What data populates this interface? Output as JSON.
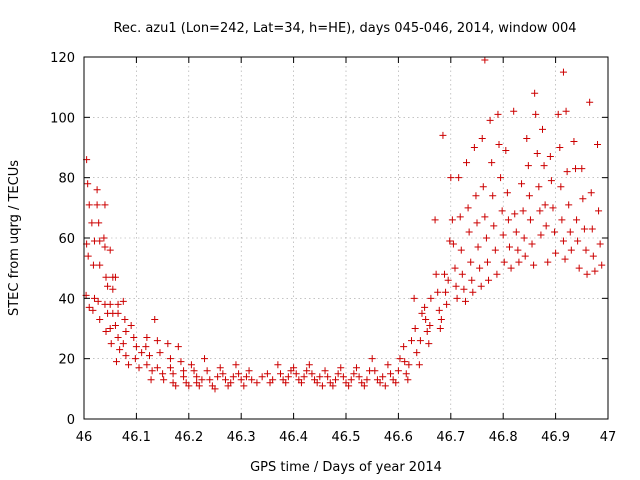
{
  "chart_data": {
    "type": "scatter",
    "title": "Rec. azu1 (Lon=242, Lat=34, h=HE), days 045-046, 2014, window 004",
    "xlabel": "GPS time / Days of year 2014",
    "ylabel": "STEC from uqrg / TECUs",
    "xlim": [
      46,
      47
    ],
    "ylim": [
      0,
      120
    ],
    "xticks": [
      "46",
      "46.1",
      "46.2",
      "46.3",
      "46.4",
      "46.5",
      "46.6",
      "46.7",
      "46.8",
      "46.9",
      "47"
    ],
    "yticks": [
      "0",
      "20",
      "40",
      "60",
      "80",
      "100",
      "120"
    ],
    "grid": true,
    "marker": "plus",
    "color": "#cc0000",
    "series": [
      {
        "name": "STEC",
        "points": [
          [
            46.005,
            86
          ],
          [
            46.007,
            78
          ],
          [
            46.01,
            71
          ],
          [
            46.005,
            58
          ],
          [
            46.008,
            54
          ],
          [
            46.004,
            41
          ],
          [
            46.01,
            37
          ],
          [
            46.015,
            65
          ],
          [
            46.02,
            59
          ],
          [
            46.018,
            51
          ],
          [
            46.02,
            40
          ],
          [
            46.017,
            36
          ],
          [
            46.025,
            76
          ],
          [
            46.025,
            71
          ],
          [
            46.028,
            65
          ],
          [
            46.03,
            59
          ],
          [
            46.03,
            51
          ],
          [
            46.027,
            39
          ],
          [
            46.03,
            33
          ],
          [
            46.04,
            71
          ],
          [
            46.038,
            60
          ],
          [
            46.04,
            57
          ],
          [
            46.042,
            47
          ],
          [
            46.045,
            44
          ],
          [
            46.04,
            38
          ],
          [
            46.045,
            35
          ],
          [
            46.042,
            29
          ],
          [
            46.05,
            56
          ],
          [
            46.055,
            47
          ],
          [
            46.055,
            43
          ],
          [
            46.05,
            38
          ],
          [
            46.055,
            35
          ],
          [
            46.05,
            30
          ],
          [
            46.052,
            25
          ],
          [
            46.06,
            47
          ],
          [
            46.065,
            38
          ],
          [
            46.065,
            35
          ],
          [
            46.06,
            31
          ],
          [
            46.065,
            27
          ],
          [
            46.068,
            23
          ],
          [
            46.062,
            19
          ],
          [
            46.075,
            39
          ],
          [
            46.078,
            33
          ],
          [
            46.08,
            29
          ],
          [
            46.075,
            25
          ],
          [
            46.08,
            21
          ],
          [
            46.085,
            18
          ],
          [
            46.09,
            31
          ],
          [
            46.095,
            27
          ],
          [
            46.1,
            24
          ],
          [
            46.098,
            20
          ],
          [
            46.105,
            17
          ],
          [
            46.11,
            22
          ],
          [
            46.12,
            27
          ],
          [
            46.118,
            24
          ],
          [
            46.125,
            21
          ],
          [
            46.12,
            18
          ],
          [
            46.13,
            16
          ],
          [
            46.128,
            13
          ],
          [
            46.135,
            33
          ],
          [
            46.14,
            26
          ],
          [
            46.145,
            22
          ],
          [
            46.14,
            17
          ],
          [
            46.15,
            15
          ],
          [
            46.152,
            13
          ],
          [
            46.16,
            25
          ],
          [
            46.165,
            20
          ],
          [
            46.165,
            17
          ],
          [
            46.17,
            15
          ],
          [
            46.17,
            12
          ],
          [
            46.175,
            11
          ],
          [
            46.18,
            24
          ],
          [
            46.185,
            19
          ],
          [
            46.19,
            16
          ],
          [
            46.19,
            14
          ],
          [
            46.195,
            12
          ],
          [
            46.2,
            11
          ],
          [
            46.205,
            18
          ],
          [
            46.21,
            16
          ],
          [
            46.215,
            14
          ],
          [
            46.215,
            12
          ],
          [
            46.22,
            11
          ],
          [
            46.225,
            13
          ],
          [
            46.23,
            20
          ],
          [
            46.235,
            16
          ],
          [
            46.24,
            13
          ],
          [
            46.245,
            11
          ],
          [
            46.25,
            10
          ],
          [
            46.255,
            14
          ],
          [
            46.26,
            17
          ],
          [
            46.265,
            15
          ],
          [
            46.27,
            13
          ],
          [
            46.275,
            11
          ],
          [
            46.28,
            12
          ],
          [
            46.285,
            14
          ],
          [
            46.29,
            18
          ],
          [
            46.295,
            15
          ],
          [
            46.3,
            13
          ],
          [
            46.305,
            11
          ],
          [
            46.31,
            14
          ],
          [
            46.315,
            16
          ],
          [
            46.32,
            13
          ],
          [
            46.33,
            12
          ],
          [
            46.34,
            14
          ],
          [
            46.35,
            15
          ],
          [
            46.355,
            12
          ],
          [
            46.36,
            13
          ],
          [
            46.37,
            18
          ],
          [
            46.375,
            15
          ],
          [
            46.38,
            13
          ],
          [
            46.385,
            12
          ],
          [
            46.39,
            14
          ],
          [
            46.395,
            16
          ],
          [
            46.4,
            17
          ],
          [
            46.405,
            15
          ],
          [
            46.41,
            13
          ],
          [
            46.415,
            12
          ],
          [
            46.42,
            14
          ],
          [
            46.425,
            16
          ],
          [
            46.43,
            18
          ],
          [
            46.435,
            15
          ],
          [
            46.44,
            13
          ],
          [
            46.445,
            12
          ],
          [
            46.45,
            14
          ],
          [
            46.455,
            11
          ],
          [
            46.46,
            16
          ],
          [
            46.465,
            14
          ],
          [
            46.47,
            12
          ],
          [
            46.475,
            11
          ],
          [
            46.48,
            13
          ],
          [
            46.485,
            15
          ],
          [
            46.49,
            17
          ],
          [
            46.495,
            14
          ],
          [
            46.5,
            12
          ],
          [
            46.505,
            11
          ],
          [
            46.51,
            13
          ],
          [
            46.515,
            15
          ],
          [
            46.52,
            17
          ],
          [
            46.525,
            14
          ],
          [
            46.53,
            12
          ],
          [
            46.535,
            11
          ],
          [
            46.54,
            13
          ],
          [
            46.545,
            16
          ],
          [
            46.55,
            20
          ],
          [
            46.555,
            16
          ],
          [
            46.56,
            13
          ],
          [
            46.565,
            12
          ],
          [
            46.57,
            14
          ],
          [
            46.575,
            11
          ],
          [
            46.58,
            18
          ],
          [
            46.585,
            15
          ],
          [
            46.59,
            13
          ],
          [
            46.595,
            12
          ],
          [
            46.6,
            16
          ],
          [
            46.603,
            20
          ],
          [
            46.61,
            24
          ],
          [
            46.612,
            19
          ],
          [
            46.615,
            15
          ],
          [
            46.618,
            13
          ],
          [
            46.62,
            18
          ],
          [
            46.625,
            26
          ],
          [
            46.63,
            40
          ],
          [
            46.632,
            30
          ],
          [
            46.635,
            22
          ],
          [
            46.64,
            18
          ],
          [
            46.642,
            26
          ],
          [
            46.645,
            35
          ],
          [
            46.65,
            37
          ],
          [
            46.652,
            33
          ],
          [
            46.655,
            29
          ],
          [
            46.658,
            25
          ],
          [
            46.66,
            31
          ],
          [
            46.662,
            40
          ],
          [
            46.67,
            66
          ],
          [
            46.672,
            48
          ],
          [
            46.675,
            42
          ],
          [
            46.678,
            36
          ],
          [
            46.68,
            30
          ],
          [
            46.682,
            33
          ],
          [
            46.685,
            94
          ],
          [
            46.688,
            48
          ],
          [
            46.69,
            42
          ],
          [
            46.692,
            38
          ],
          [
            46.695,
            46
          ],
          [
            46.698,
            59
          ],
          [
            46.7,
            80
          ],
          [
            46.703,
            66
          ],
          [
            46.705,
            58
          ],
          [
            46.708,
            50
          ],
          [
            46.71,
            44
          ],
          [
            46.712,
            40
          ],
          [
            46.715,
            80
          ],
          [
            46.718,
            67
          ],
          [
            46.72,
            56
          ],
          [
            46.722,
            48
          ],
          [
            46.725,
            43
          ],
          [
            46.728,
            39
          ],
          [
            46.73,
            85
          ],
          [
            46.733,
            70
          ],
          [
            46.735,
            62
          ],
          [
            46.738,
            52
          ],
          [
            46.74,
            46
          ],
          [
            46.742,
            42
          ],
          [
            46.745,
            90
          ],
          [
            46.748,
            74
          ],
          [
            46.75,
            65
          ],
          [
            46.752,
            57
          ],
          [
            46.755,
            50
          ],
          [
            46.758,
            44
          ],
          [
            46.76,
            93
          ],
          [
            46.762,
            77
          ],
          [
            46.765,
            67
          ],
          [
            46.768,
            60
          ],
          [
            46.77,
            52
          ],
          [
            46.772,
            46
          ],
          [
            46.765,
            119
          ],
          [
            46.775,
            99
          ],
          [
            46.778,
            85
          ],
          [
            46.78,
            74
          ],
          [
            46.782,
            64
          ],
          [
            46.785,
            56
          ],
          [
            46.788,
            48
          ],
          [
            46.79,
            101
          ],
          [
            46.792,
            91
          ],
          [
            46.795,
            80
          ],
          [
            46.798,
            69
          ],
          [
            46.8,
            61
          ],
          [
            46.802,
            52
          ],
          [
            46.805,
            89
          ],
          [
            46.808,
            75
          ],
          [
            46.81,
            66
          ],
          [
            46.812,
            57
          ],
          [
            46.815,
            50
          ],
          [
            46.82,
            102
          ],
          [
            46.822,
            68
          ],
          [
            46.825,
            62
          ],
          [
            46.828,
            56
          ],
          [
            46.83,
            52
          ],
          [
            46.835,
            78
          ],
          [
            46.838,
            69
          ],
          [
            46.84,
            60
          ],
          [
            46.842,
            54
          ],
          [
            46.845,
            93
          ],
          [
            46.848,
            84
          ],
          [
            46.85,
            74
          ],
          [
            46.852,
            66
          ],
          [
            46.855,
            58
          ],
          [
            46.858,
            51
          ],
          [
            46.86,
            108
          ],
          [
            46.862,
            101
          ],
          [
            46.865,
            88
          ],
          [
            46.868,
            77
          ],
          [
            46.87,
            69
          ],
          [
            46.872,
            61
          ],
          [
            46.875,
            96
          ],
          [
            46.878,
            84
          ],
          [
            46.88,
            71
          ],
          [
            46.882,
            64
          ],
          [
            46.885,
            52
          ],
          [
            46.89,
            87
          ],
          [
            46.892,
            79
          ],
          [
            46.895,
            70
          ],
          [
            46.898,
            62
          ],
          [
            46.9,
            55
          ],
          [
            46.905,
            101
          ],
          [
            46.908,
            90
          ],
          [
            46.91,
            77
          ],
          [
            46.912,
            66
          ],
          [
            46.915,
            59
          ],
          [
            46.918,
            53
          ],
          [
            46.915,
            115
          ],
          [
            46.92,
            102
          ],
          [
            46.922,
            82
          ],
          [
            46.925,
            71
          ],
          [
            46.928,
            62
          ],
          [
            46.93,
            56
          ],
          [
            46.935,
            92
          ],
          [
            46.938,
            83
          ],
          [
            46.94,
            66
          ],
          [
            46.942,
            59
          ],
          [
            46.945,
            50
          ],
          [
            46.95,
            83
          ],
          [
            46.952,
            73
          ],
          [
            46.955,
            63
          ],
          [
            46.958,
            56
          ],
          [
            46.96,
            48
          ],
          [
            46.965,
            105
          ],
          [
            46.968,
            75
          ],
          [
            46.97,
            63
          ],
          [
            46.972,
            54
          ],
          [
            46.975,
            49
          ],
          [
            46.98,
            91
          ],
          [
            46.982,
            69
          ],
          [
            46.985,
            58
          ],
          [
            46.988,
            51
          ]
        ]
      }
    ]
  }
}
